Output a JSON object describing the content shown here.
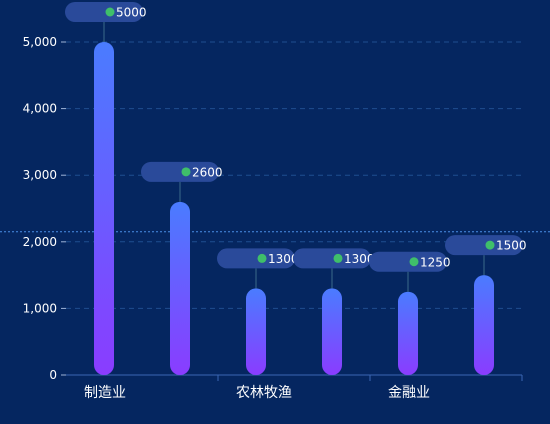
{
  "chart_data": {
    "type": "bar",
    "categories": [
      "制造业",
      "",
      "农林牧渔",
      "",
      "金融业",
      ""
    ],
    "values": [
      5000,
      2600,
      1300,
      1300,
      1250,
      1500
    ],
    "y_ticks": [
      "0",
      "1,000",
      "2,000",
      "3,000",
      "4,000",
      "5,000"
    ],
    "ylim": [
      0,
      5000
    ],
    "x_labels_shown": [
      {
        "label": "制造业",
        "index": 0
      },
      {
        "label": "农林牧渔",
        "index": 2
      },
      {
        "label": "金融业",
        "index": 4
      }
    ],
    "reference_line_value": 2150,
    "grid": true,
    "colors": {
      "background": "#052660",
      "bar_top": "#4a7cff",
      "bar_bottom": "#8a3cff",
      "label_bubble": "#2a4a9a",
      "label_dot": "#3fbf6a",
      "grid": "#1f4e8f",
      "axis_text": "#ffffff",
      "reference_line": "#4a8ee6"
    }
  }
}
